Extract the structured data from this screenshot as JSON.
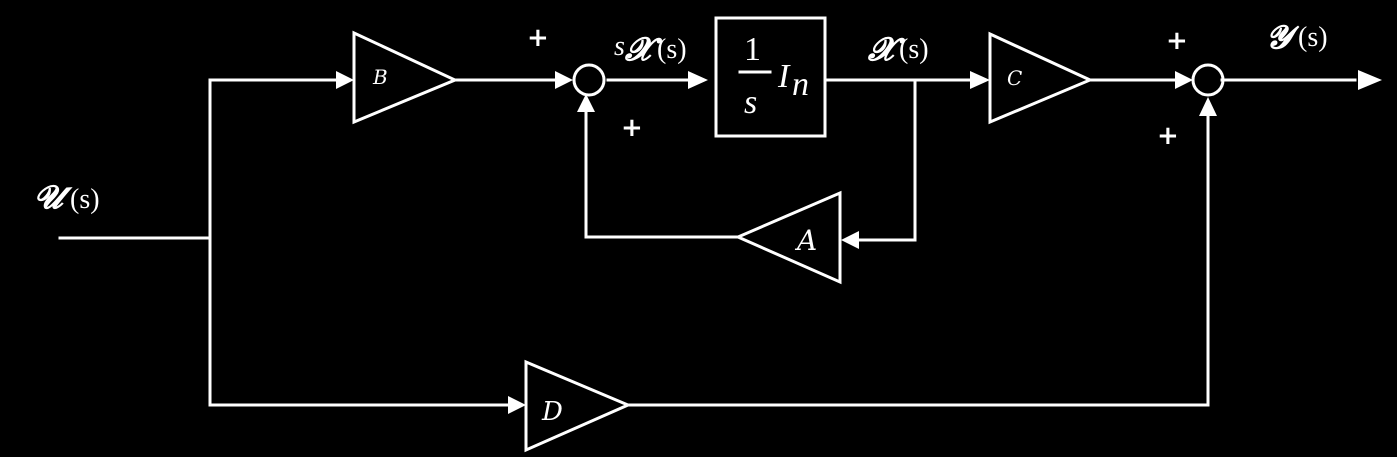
{
  "diagram": {
    "background": "#000000",
    "foreground": "#ffffff",
    "signals": {
      "input": {
        "symbol": "𝓤",
        "arg": "(s)",
        "s": "s"
      },
      "state_derivative": {
        "prefix": "s",
        "symbol": "𝓧",
        "arg": "(s)"
      },
      "state": {
        "symbol": "𝓧",
        "arg": "(s)"
      },
      "output": {
        "symbol": "𝓨",
        "arg": "(s)"
      }
    },
    "blocks": {
      "integrator": {
        "numerator": "1",
        "denominator": "s",
        "identity": "I",
        "subscript": "n"
      },
      "gain_b": {
        "label": "B"
      },
      "gain_a": {
        "label": "A"
      },
      "gain_c": {
        "label": "C"
      },
      "gain_d": {
        "label": "D"
      }
    },
    "summing_junctions": {
      "state_sum": {
        "top_sign": "+",
        "bottom_sign": "+"
      },
      "output_sum": {
        "top_sign": "+",
        "bottom_sign": "+"
      }
    }
  }
}
